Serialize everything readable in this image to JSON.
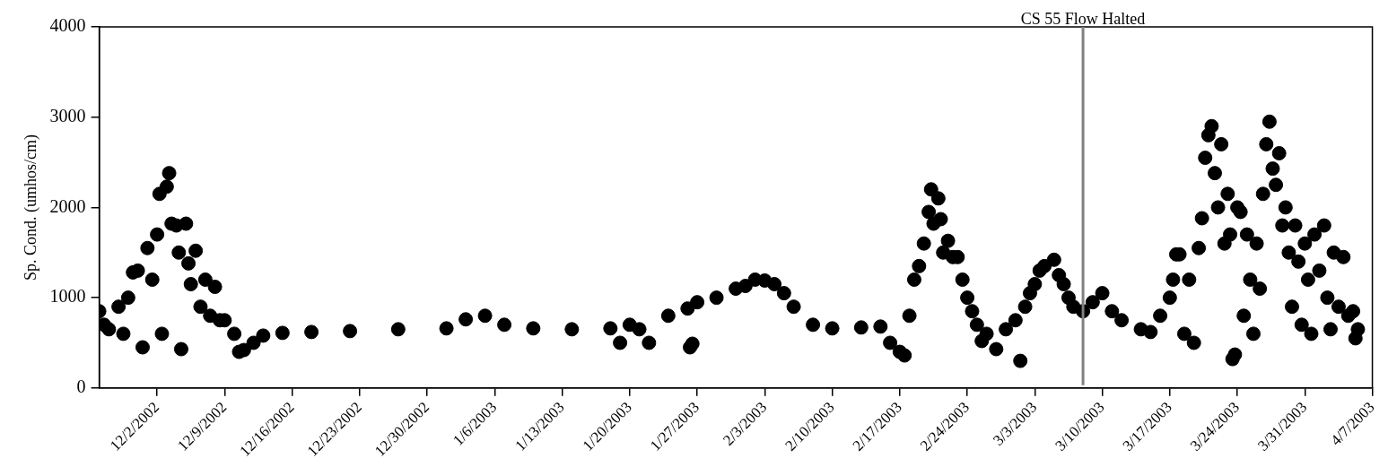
{
  "chart_data": {
    "type": "scatter",
    "ylabel": "Sp. Cond. (umhos/cm)",
    "color": "#000000",
    "marker": "circle",
    "grid": false,
    "legend": false,
    "xlim": [
      "2002-11-26",
      "2003-04-07"
    ],
    "xticks": [
      {
        "value": "2002-12-02",
        "label": "12/2/2002"
      },
      {
        "value": "2002-12-09",
        "label": "12/9/2002"
      },
      {
        "value": "2002-12-16",
        "label": "12/16/2002"
      },
      {
        "value": "2002-12-23",
        "label": "12/23/2002"
      },
      {
        "value": "2002-12-30",
        "label": "12/30/2002"
      },
      {
        "value": "2003-01-06",
        "label": "1/6/2003"
      },
      {
        "value": "2003-01-13",
        "label": "1/13/2003"
      },
      {
        "value": "2003-01-20",
        "label": "1/20/2003"
      },
      {
        "value": "2003-01-27",
        "label": "1/27/2003"
      },
      {
        "value": "2003-02-03",
        "label": "2/3/2003"
      },
      {
        "value": "2003-02-10",
        "label": "2/10/2003"
      },
      {
        "value": "2003-02-17",
        "label": "2/17/2003"
      },
      {
        "value": "2003-02-24",
        "label": "2/24/2003"
      },
      {
        "value": "2003-03-03",
        "label": "3/3/2003"
      },
      {
        "value": "2003-03-10",
        "label": "3/10/2003"
      },
      {
        "value": "2003-03-17",
        "label": "3/17/2003"
      },
      {
        "value": "2003-03-24",
        "label": "3/24/2003"
      },
      {
        "value": "2003-03-31",
        "label": "3/31/2003"
      },
      {
        "value": "2003-04-07",
        "label": "4/7/2003"
      }
    ],
    "ylim": [
      0,
      4000
    ],
    "yticks": [
      0,
      1000,
      2000,
      3000,
      4000
    ],
    "ref_lines": [
      {
        "axis": "x",
        "value": "2003-03-08",
        "label": "CS 55 Flow Halted",
        "color": "#808080",
        "line_style": "solid"
      }
    ],
    "x": [
      "2002-11-26",
      "2002-11-26T12:00",
      "2002-11-27",
      "2002-11-28",
      "2002-11-28T12:00",
      "2002-11-29",
      "2002-11-29T12:00",
      "2002-11-30",
      "2002-11-30T12:00",
      "2002-12-01",
      "2002-12-01T12:00",
      "2002-12-02",
      "2002-12-02T06:00",
      "2002-12-02T12:00",
      "2002-12-03",
      "2002-12-03T06:00",
      "2002-12-03T12:00",
      "2002-12-04",
      "2002-12-04T06:00",
      "2002-12-04T12:00",
      "2002-12-05",
      "2002-12-05T06:00",
      "2002-12-05T12:00",
      "2002-12-06",
      "2002-12-06T12:00",
      "2002-12-07",
      "2002-12-07T12:00",
      "2002-12-08",
      "2002-12-08T12:00",
      "2002-12-09",
      "2002-12-10",
      "2002-12-10T12:00",
      "2002-12-11",
      "2002-12-12",
      "2002-12-13",
      "2002-12-15",
      "2002-12-18",
      "2002-12-22",
      "2002-12-27",
      "2003-01-01",
      "2003-01-03",
      "2003-01-05",
      "2003-01-07",
      "2003-01-10",
      "2003-01-14",
      "2003-01-18",
      "2003-01-19",
      "2003-01-20",
      "2003-01-21",
      "2003-01-22",
      "2003-01-24",
      "2003-01-26",
      "2003-01-26T06:00",
      "2003-01-26T12:00",
      "2003-01-27",
      "2003-01-29",
      "2003-01-31",
      "2003-02-01",
      "2003-02-02",
      "2003-02-03",
      "2003-02-04",
      "2003-02-05",
      "2003-02-06",
      "2003-02-08",
      "2003-02-10",
      "2003-02-13",
      "2003-02-15",
      "2003-02-16",
      "2003-02-17",
      "2003-02-17T12:00",
      "2003-02-18",
      "2003-02-18T12:00",
      "2003-02-19",
      "2003-02-19T12:00",
      "2003-02-20",
      "2003-02-20T06:00",
      "2003-02-20T12:00",
      "2003-02-21",
      "2003-02-21T06:00",
      "2003-02-21T12:00",
      "2003-02-22",
      "2003-02-22T12:00",
      "2003-02-23",
      "2003-02-23T12:00",
      "2003-02-24",
      "2003-02-24T12:00",
      "2003-02-25",
      "2003-02-25T12:00",
      "2003-02-26",
      "2003-02-27",
      "2003-02-28",
      "2003-03-01",
      "2003-03-01T12:00",
      "2003-03-02",
      "2003-03-02T12:00",
      "2003-03-03",
      "2003-03-03T12:00",
      "2003-03-04",
      "2003-03-05",
      "2003-03-05T12:00",
      "2003-03-06",
      "2003-03-06T12:00",
      "2003-03-07",
      "2003-03-08",
      "2003-03-09",
      "2003-03-10",
      "2003-03-11",
      "2003-03-12",
      "2003-03-14",
      "2003-03-15",
      "2003-03-16",
      "2003-03-17",
      "2003-03-17T08:00",
      "2003-03-17T16:00",
      "2003-03-18",
      "2003-03-18T12:00",
      "2003-03-19",
      "2003-03-19T12:00",
      "2003-03-20",
      "2003-03-20T08:00",
      "2003-03-20T16:00",
      "2003-03-21",
      "2003-03-21T08:00",
      "2003-03-21T16:00",
      "2003-03-22",
      "2003-03-22T08:00",
      "2003-03-22T16:00",
      "2003-03-23",
      "2003-03-23T06:00",
      "2003-03-23T12:00",
      "2003-03-23T18:00",
      "2003-03-24",
      "2003-03-24T08:00",
      "2003-03-24T16:00",
      "2003-03-25",
      "2003-03-25T08:00",
      "2003-03-25T16:00",
      "2003-03-26",
      "2003-03-26T08:00",
      "2003-03-26T16:00",
      "2003-03-27",
      "2003-03-27T08:00",
      "2003-03-27T16:00",
      "2003-03-28",
      "2003-03-28T08:00",
      "2003-03-28T16:00",
      "2003-03-29",
      "2003-03-29T08:00",
      "2003-03-29T16:00",
      "2003-03-30",
      "2003-03-30T08:00",
      "2003-03-30T16:00",
      "2003-03-31",
      "2003-03-31T08:00",
      "2003-03-31T16:00",
      "2003-04-01",
      "2003-04-01T12:00",
      "2003-04-02",
      "2003-04-02T08:00",
      "2003-04-02T16:00",
      "2003-04-03",
      "2003-04-03T12:00",
      "2003-04-04",
      "2003-04-04T12:00",
      "2003-04-05",
      "2003-04-05T06:00",
      "2003-04-05T12:00"
    ],
    "values": [
      850,
      700,
      650,
      900,
      600,
      1000,
      1280,
      1300,
      450,
      1550,
      1200,
      1700,
      2150,
      600,
      2230,
      2380,
      1820,
      1800,
      1500,
      430,
      1820,
      1380,
      1150,
      1520,
      900,
      1200,
      800,
      1120,
      750,
      750,
      600,
      400,
      420,
      500,
      580,
      610,
      620,
      630,
      650,
      660,
      760,
      800,
      700,
      660,
      650,
      660,
      500,
      700,
      650,
      500,
      800,
      880,
      450,
      490,
      950,
      1000,
      1100,
      1130,
      1200,
      1190,
      1150,
      1050,
      900,
      700,
      660,
      670,
      680,
      500,
      400,
      360,
      800,
      1200,
      1350,
      1600,
      1950,
      2200,
      1820,
      2100,
      1870,
      1500,
      1630,
      1450,
      1450,
      1200,
      1000,
      850,
      700,
      520,
      600,
      430,
      650,
      750,
      300,
      900,
      1050,
      1150,
      1300,
      1350,
      1420,
      1250,
      1150,
      1000,
      900,
      850,
      950,
      1050,
      850,
      750,
      650,
      620,
      800,
      1000,
      1200,
      1480,
      1480,
      600,
      1200,
      500,
      1550,
      1880,
      2550,
      2800,
      2900,
      2380,
      2000,
      2700,
      1600,
      2150,
      1700,
      320,
      370,
      2000,
      1950,
      800,
      1700,
      1200,
      600,
      1600,
      1100,
      2150,
      2700,
      2950,
      2430,
      2250,
      2600,
      1800,
      2000,
      1500,
      900,
      1800,
      1400,
      700,
      1600,
      1200,
      600,
      1700,
      1300,
      1800,
      1000,
      650,
      1500,
      900,
      1450,
      800,
      850,
      550,
      650
    ]
  }
}
